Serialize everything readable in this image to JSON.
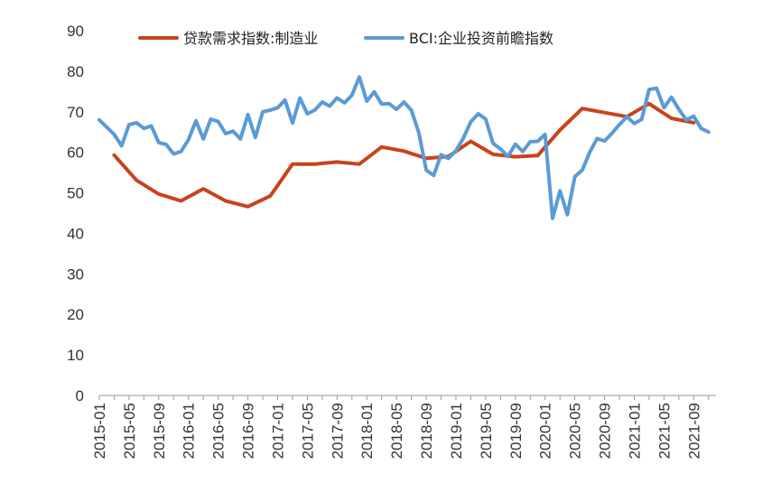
{
  "chart_data": {
    "type": "line",
    "title": "",
    "xlabel": "",
    "ylabel": "",
    "ylim": [
      0,
      90
    ],
    "yticks": [
      0,
      10,
      20,
      30,
      40,
      50,
      60,
      70,
      80,
      90
    ],
    "x_start": "2015-01",
    "x_end": "2021-12",
    "xtick_labels": [
      "2015-01",
      "2015-05",
      "2015-09",
      "2016-01",
      "2016-05",
      "2016-09",
      "2017-01",
      "2017-05",
      "2017-09",
      "2018-01",
      "2018-05",
      "2018-09",
      "2019-01",
      "2019-05",
      "2019-09",
      "2020-01",
      "2020-05",
      "2020-09",
      "2021-01",
      "2021-05",
      "2021-09"
    ],
    "grid": false,
    "legend_position": "top",
    "series": [
      {
        "name": "贷款需求指数:制造业",
        "color": "#c8431d",
        "points": [
          [
            "2015-03",
            59.3
          ],
          [
            "2015-06",
            53.1
          ],
          [
            "2015-09",
            49.7
          ],
          [
            "2015-12",
            48.0
          ],
          [
            "2016-03",
            51.0
          ],
          [
            "2016-06",
            48.0
          ],
          [
            "2016-09",
            46.6
          ],
          [
            "2016-12",
            49.2
          ],
          [
            "2017-03",
            57.1
          ],
          [
            "2017-06",
            57.1
          ],
          [
            "2017-09",
            57.6
          ],
          [
            "2017-12",
            57.1
          ],
          [
            "2018-03",
            61.3
          ],
          [
            "2018-06",
            60.3
          ],
          [
            "2018-09",
            58.5
          ],
          [
            "2018-12",
            59.0
          ],
          [
            "2019-03",
            62.7
          ],
          [
            "2019-06",
            59.5
          ],
          [
            "2019-09",
            58.9
          ],
          [
            "2019-12",
            59.2
          ],
          [
            "2020-03",
            65.5
          ],
          [
            "2020-06",
            70.8
          ],
          [
            "2020-09",
            69.8
          ],
          [
            "2020-12",
            68.8
          ],
          [
            "2021-03",
            72.0
          ],
          [
            "2021-06",
            68.4
          ],
          [
            "2021-09",
            67.3
          ]
        ]
      },
      {
        "name": "BCI:企业投资前瞻指数",
        "color": "#5b9bd5",
        "points": [
          [
            "2015-01",
            68.0
          ],
          [
            "2015-02",
            66.2
          ],
          [
            "2015-03",
            64.4
          ],
          [
            "2015-04",
            61.6
          ],
          [
            "2015-05",
            66.8
          ],
          [
            "2015-06",
            67.3
          ],
          [
            "2015-07",
            65.9
          ],
          [
            "2015-08",
            66.5
          ],
          [
            "2015-09",
            62.4
          ],
          [
            "2015-10",
            61.9
          ],
          [
            "2015-11",
            59.6
          ],
          [
            "2015-12",
            60.2
          ],
          [
            "2016-01",
            63.1
          ],
          [
            "2016-02",
            67.8
          ],
          [
            "2016-03",
            63.3
          ],
          [
            "2016-04",
            68.2
          ],
          [
            "2016-05",
            67.6
          ],
          [
            "2016-06",
            64.6
          ],
          [
            "2016-07",
            65.2
          ],
          [
            "2016-08",
            63.3
          ],
          [
            "2016-09",
            69.3
          ],
          [
            "2016-10",
            63.7
          ],
          [
            "2016-11",
            70.0
          ],
          [
            "2016-12",
            70.4
          ],
          [
            "2017-01",
            71.0
          ],
          [
            "2017-02",
            72.9
          ],
          [
            "2017-03",
            67.2
          ],
          [
            "2017-04",
            73.4
          ],
          [
            "2017-05",
            69.5
          ],
          [
            "2017-06",
            70.4
          ],
          [
            "2017-07",
            72.4
          ],
          [
            "2017-08",
            71.4
          ],
          [
            "2017-09",
            73.4
          ],
          [
            "2017-10",
            72.2
          ],
          [
            "2017-11",
            74.1
          ],
          [
            "2017-12",
            78.6
          ],
          [
            "2018-01",
            72.6
          ],
          [
            "2018-02",
            74.9
          ],
          [
            "2018-03",
            71.9
          ],
          [
            "2018-04",
            72.0
          ],
          [
            "2018-05",
            70.6
          ],
          [
            "2018-06",
            72.4
          ],
          [
            "2018-07",
            70.4
          ],
          [
            "2018-08",
            64.9
          ],
          [
            "2018-09",
            55.6
          ],
          [
            "2018-10",
            54.3
          ],
          [
            "2018-11",
            59.4
          ],
          [
            "2018-12",
            58.5
          ],
          [
            "2019-01",
            60.4
          ],
          [
            "2019-02",
            63.5
          ],
          [
            "2019-03",
            67.5
          ],
          [
            "2019-04",
            69.5
          ],
          [
            "2019-05",
            68.2
          ],
          [
            "2019-06",
            62.2
          ],
          [
            "2019-07",
            60.8
          ],
          [
            "2019-08",
            59.0
          ],
          [
            "2019-09",
            62.0
          ],
          [
            "2019-10",
            60.2
          ],
          [
            "2019-11",
            62.6
          ],
          [
            "2019-12",
            62.7
          ],
          [
            "2020-01",
            64.4
          ],
          [
            "2020-02",
            43.7
          ],
          [
            "2020-03",
            50.5
          ],
          [
            "2020-04",
            44.6
          ],
          [
            "2020-05",
            54.0
          ],
          [
            "2020-06",
            55.6
          ],
          [
            "2020-07",
            60.0
          ],
          [
            "2020-08",
            63.4
          ],
          [
            "2020-09",
            62.8
          ],
          [
            "2020-10",
            64.7
          ],
          [
            "2020-11",
            66.8
          ],
          [
            "2020-12",
            68.8
          ],
          [
            "2021-01",
            67.1
          ],
          [
            "2021-02",
            68.1
          ],
          [
            "2021-03",
            75.5
          ],
          [
            "2021-04",
            75.8
          ],
          [
            "2021-05",
            71.0
          ],
          [
            "2021-06",
            73.6
          ],
          [
            "2021-07",
            70.6
          ],
          [
            "2021-08",
            68.0
          ],
          [
            "2021-09",
            68.9
          ],
          [
            "2021-10",
            65.9
          ],
          [
            "2021-11",
            65.0
          ]
        ]
      }
    ]
  }
}
